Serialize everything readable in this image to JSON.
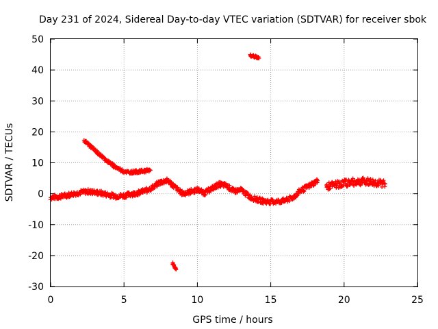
{
  "chart_data": {
    "type": "scatter",
    "title": "Day 231 of 2024, Sidereal Day-to-day VTEC variation (SDTVAR) for receiver sbok",
    "xlabel": "GPS time / hours",
    "ylabel": "SDTVAR / TECUs",
    "xlim": [
      0,
      25
    ],
    "ylim": [
      -30,
      50
    ],
    "xticks": [
      0,
      5,
      10,
      15,
      20,
      25
    ],
    "yticks": [
      -30,
      -20,
      -10,
      0,
      10,
      20,
      30,
      40,
      50
    ],
    "xtick_labels": [
      "0",
      "5",
      "10",
      "15",
      "20",
      "25"
    ],
    "ytick_labels": [
      "-30",
      "-20",
      "-10",
      "0",
      "10",
      "20",
      "30",
      "40",
      "50"
    ],
    "grid": true,
    "marker_color": "#ff0000",
    "series": [
      {
        "name": "main-trace",
        "x": [
          0.0,
          0.5,
          1.0,
          1.5,
          2.0,
          2.5,
          3.0,
          3.5,
          4.0,
          4.5,
          5.0,
          5.5,
          6.0,
          6.5,
          7.0,
          7.5,
          8.0,
          8.5,
          9.0,
          9.5,
          10.0,
          10.5,
          11.0,
          11.5,
          12.0,
          12.5,
          13.0,
          13.5,
          14.0,
          14.5,
          15.0,
          15.5,
          16.0,
          16.5,
          17.0,
          17.5,
          18.0,
          18.2
        ],
        "y": [
          -1.2,
          -1.0,
          -0.6,
          -0.1,
          0.4,
          0.7,
          0.5,
          0.1,
          -0.4,
          -0.8,
          -0.6,
          -0.1,
          0.3,
          1.0,
          2.2,
          3.8,
          4.2,
          2.0,
          0.0,
          0.6,
          1.3,
          0.2,
          1.8,
          3.0,
          2.6,
          0.8,
          1.2,
          -0.8,
          -1.8,
          -2.4,
          -2.6,
          -2.5,
          -2.2,
          -1.3,
          0.8,
          2.2,
          3.6,
          4.3
        ],
        "spread": 1.6
      },
      {
        "name": "descending-arc",
        "x": [
          2.3,
          2.8,
          3.3,
          3.8,
          4.3,
          4.8,
          5.3,
          5.8,
          6.3,
          6.8
        ],
        "y": [
          17.2,
          15.0,
          12.8,
          10.8,
          9.0,
          7.6,
          6.9,
          7.1,
          7.3,
          7.6
        ],
        "spread": 1.0
      },
      {
        "name": "late-segment",
        "x": [
          18.8,
          19.3,
          19.8,
          20.3,
          20.8,
          21.3,
          21.8,
          22.3,
          22.8
        ],
        "y": [
          2.3,
          2.8,
          3.2,
          3.6,
          3.8,
          4.0,
          3.8,
          3.4,
          3.2
        ],
        "spread": 2.4
      },
      {
        "name": "high-outlier",
        "x": [
          13.6,
          13.8,
          14.0,
          14.2
        ],
        "y": [
          44.8,
          44.5,
          44.2,
          43.8
        ],
        "spread": 0.8
      },
      {
        "name": "low-outlier",
        "x": [
          8.3,
          8.45,
          8.55
        ],
        "y": [
          -22.5,
          -23.5,
          -24.5
        ],
        "spread": 0.6
      }
    ]
  }
}
